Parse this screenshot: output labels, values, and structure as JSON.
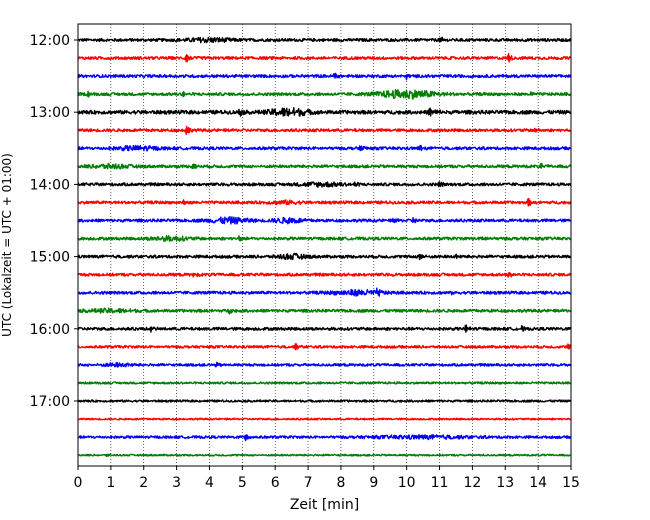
{
  "chart_data": {
    "type": "line",
    "title": "",
    "xlabel": "Zeit  [min]",
    "ylabel": "UTC (Lokalzeit = UTC + 01:00)",
    "xlim": [
      0,
      15
    ],
    "x_ticks": [
      0,
      1,
      2,
      3,
      4,
      5,
      6,
      7,
      8,
      9,
      10,
      11,
      12,
      13,
      14,
      15
    ],
    "x_tick_labels": [
      "0",
      "1",
      "2",
      "3",
      "4",
      "5",
      "6",
      "7",
      "8",
      "9",
      "10",
      "11",
      "12",
      "13",
      "14",
      "15"
    ],
    "y_tick_labels": [
      "12:00",
      "13:00",
      "14:00",
      "15:00",
      "16:00",
      "17:00"
    ],
    "y_tick_rows": [
      0,
      4,
      8,
      12,
      16,
      20
    ],
    "grid": "vertical-dotted",
    "row_colors": [
      "#000000",
      "#ff0000",
      "#0000ff",
      "#008000"
    ],
    "series": [
      {
        "start": "12:00",
        "amp": 0.35,
        "events": [
          [
            11.0,
            1.0
          ]
        ],
        "bursts": [
          [
            4.0,
            0.9,
            0.4
          ]
        ]
      },
      {
        "start": "12:15",
        "amp": 0.35,
        "events": [
          [
            3.3,
            0.9
          ],
          [
            13.1,
            1.0
          ]
        ],
        "bursts": []
      },
      {
        "start": "12:30",
        "amp": 0.35,
        "events": [
          [
            7.8,
            0.9
          ],
          [
            10.0,
            0.7
          ]
        ],
        "bursts": []
      },
      {
        "start": "12:45",
        "amp": 0.35,
        "events": [
          [
            0.3,
            0.6
          ],
          [
            3.2,
            0.7
          ],
          [
            13.8,
            0.6
          ]
        ],
        "bursts": [
          [
            10.0,
            1.2,
            0.9
          ]
        ]
      },
      {
        "start": "13:00",
        "amp": 0.45,
        "events": [
          [
            4.9,
            1.0
          ],
          [
            10.7,
            0.9
          ],
          [
            10.9,
            0.8
          ]
        ],
        "bursts": [
          [
            6.4,
            0.8,
            0.8
          ]
        ]
      },
      {
        "start": "13:15",
        "amp": 0.35,
        "events": [
          [
            3.3,
            1.0
          ],
          [
            13.9,
            0.7
          ]
        ],
        "bursts": []
      },
      {
        "start": "13:30",
        "amp": 0.35,
        "events": [
          [
            8.6,
            0.8
          ],
          [
            10.4,
            0.9
          ]
        ],
        "bursts": [
          [
            1.8,
            0.9,
            0.4
          ]
        ]
      },
      {
        "start": "13:45",
        "amp": 0.35,
        "events": [
          [
            3.5,
            0.6
          ],
          [
            14.1,
            0.7
          ]
        ],
        "bursts": [
          [
            1.0,
            0.8,
            0.4
          ]
        ]
      },
      {
        "start": "14:00",
        "amp": 0.35,
        "events": [
          [
            8.4,
            0.6
          ],
          [
            11.0,
            0.7
          ]
        ],
        "bursts": [
          [
            7.4,
            0.9,
            0.4
          ]
        ]
      },
      {
        "start": "14:15",
        "amp": 0.35,
        "events": [
          [
            3.2,
            0.6
          ],
          [
            13.7,
            0.8
          ]
        ],
        "bursts": [
          [
            6.3,
            0.6,
            0.3
          ]
        ]
      },
      {
        "start": "14:30",
        "amp": 0.35,
        "events": [
          [
            9.6,
            0.7
          ],
          [
            10.2,
            0.6
          ]
        ],
        "bursts": [
          [
            4.6,
            0.8,
            0.6
          ],
          [
            6.4,
            0.6,
            0.5
          ]
        ]
      },
      {
        "start": "14:45",
        "amp": 0.35,
        "events": [
          [
            4.9,
            0.6
          ],
          [
            12.3,
            0.5
          ]
        ],
        "bursts": [
          [
            2.8,
            0.8,
            0.4
          ]
        ]
      },
      {
        "start": "15:00",
        "amp": 0.35,
        "events": [
          [
            10.4,
            0.8
          ],
          [
            11.5,
            0.4
          ]
        ],
        "bursts": [
          [
            6.5,
            0.6,
            0.5
          ]
        ]
      },
      {
        "start": "15:15",
        "amp": 0.35,
        "events": [
          [
            3.5,
            0.7
          ],
          [
            13.1,
            0.7
          ]
        ],
        "bursts": []
      },
      {
        "start": "15:30",
        "amp": 0.35,
        "events": [
          [
            9.1,
            0.9
          ],
          [
            11.4,
            0.5
          ]
        ],
        "bursts": [
          [
            8.5,
            1.0,
            0.5
          ]
        ]
      },
      {
        "start": "15:45",
        "amp": 0.35,
        "events": [
          [
            4.6,
            0.6
          ]
        ],
        "bursts": [
          [
            1.0,
            1.0,
            0.3
          ]
        ]
      },
      {
        "start": "16:00",
        "amp": 0.35,
        "events": [
          [
            2.2,
            0.8
          ],
          [
            11.8,
            0.8
          ],
          [
            13.5,
            0.6
          ]
        ],
        "bursts": []
      },
      {
        "start": "16:15",
        "amp": 0.3,
        "events": [
          [
            6.6,
            1.0
          ],
          [
            14.9,
            0.6
          ]
        ],
        "bursts": []
      },
      {
        "start": "16:30",
        "amp": 0.3,
        "events": [
          [
            4.2,
            0.5
          ]
        ],
        "bursts": [
          [
            1.2,
            0.6,
            0.3
          ]
        ]
      },
      {
        "start": "16:45",
        "amp": 0.25,
        "events": [],
        "bursts": []
      },
      {
        "start": "17:00",
        "amp": 0.25,
        "events": [],
        "bursts": []
      },
      {
        "start": "17:15",
        "amp": 0.2,
        "events": [],
        "bursts": []
      },
      {
        "start": "17:30",
        "amp": 0.3,
        "events": [
          [
            5.1,
            0.9
          ]
        ],
        "bursts": [
          [
            10.5,
            2.0,
            0.3
          ]
        ]
      },
      {
        "start": "17:45",
        "amp": 0.2,
        "events": [
          [
            0.9,
            0.5
          ]
        ],
        "bursts": []
      }
    ]
  }
}
